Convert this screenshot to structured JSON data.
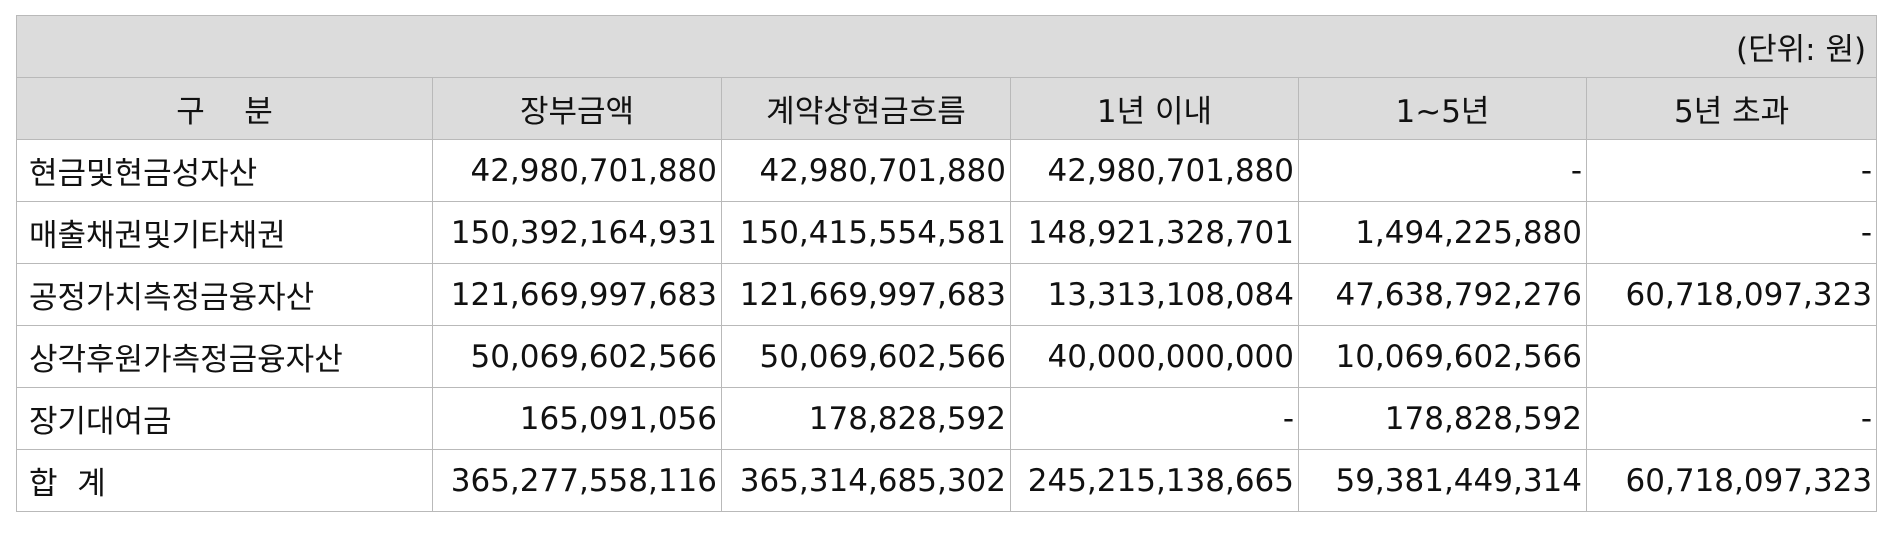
{
  "unit_note": "(단위: 원)",
  "headers": [
    "구    분",
    "장부금액",
    "계약상현금흐름",
    "1년 이내",
    "1~5년",
    "5년 초과"
  ],
  "rows": [
    {
      "label": "현금및현금성자산",
      "values": [
        "42,980,701,880",
        "42,980,701,880",
        "42,980,701,880",
        "-",
        "-"
      ]
    },
    {
      "label": "매출채권및기타채권",
      "values": [
        "150,392,164,931",
        "150,415,554,581",
        "148,921,328,701",
        "1,494,225,880",
        "-"
      ]
    },
    {
      "label": "공정가치측정금융자산",
      "values": [
        "121,669,997,683",
        "121,669,997,683",
        "13,313,108,084",
        "47,638,792,276",
        "60,718,097,323"
      ]
    },
    {
      "label": "상각후원가측정금융자산",
      "values": [
        "50,069,602,566",
        "50,069,602,566",
        "40,000,000,000",
        "10,069,602,566",
        ""
      ]
    },
    {
      "label": "장기대여금",
      "values": [
        "165,091,056",
        "178,828,592",
        "-",
        "178,828,592",
        "-"
      ]
    },
    {
      "label": "합  계",
      "values": [
        "365,277,558,116",
        "365,314,685,302",
        "245,215,138,665",
        "59,381,449,314",
        "60,718,097,323"
      ]
    }
  ]
}
